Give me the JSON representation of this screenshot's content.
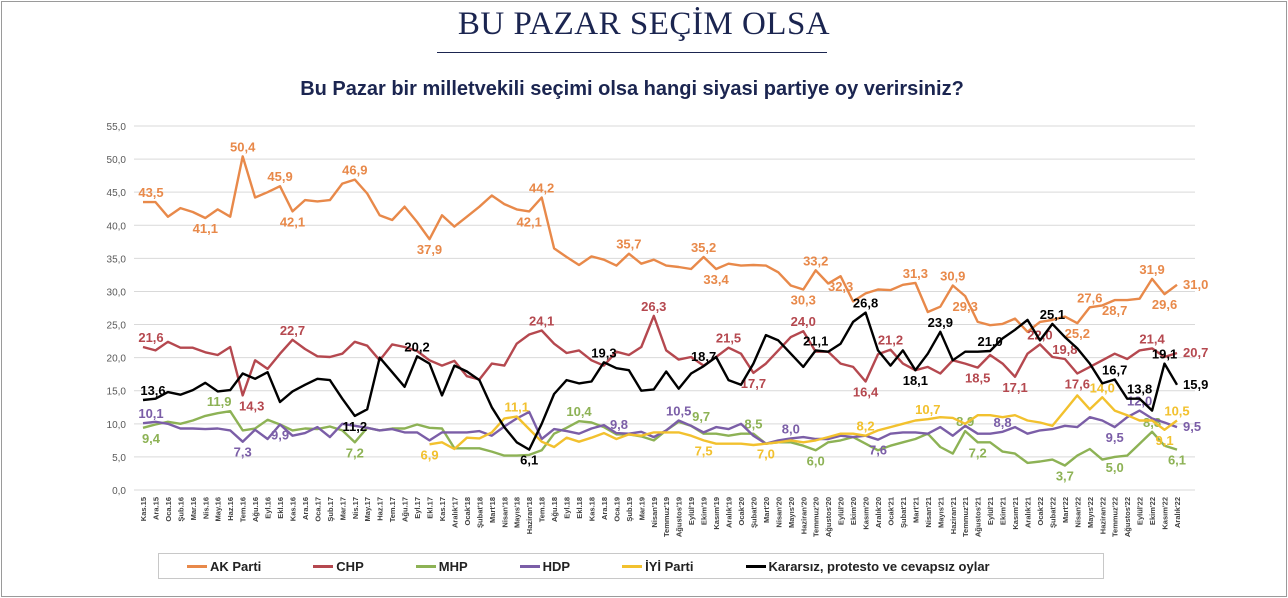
{
  "header": {
    "title": "BU PAZAR SEÇİM OLSA"
  },
  "chart_data": {
    "type": "line",
    "title": "Bu Pazar bir milletvekili seçimi olsa hangi siyasi partiye oy verirsiniz?",
    "xlabel": "",
    "ylabel": "",
    "ylim": [
      0,
      55
    ],
    "yticks": [
      "0,0",
      "5,0",
      "10,0",
      "15,0",
      "20,0",
      "25,0",
      "30,0",
      "35,0",
      "40,0",
      "45,0",
      "50,0",
      "55,0"
    ],
    "grid": true,
    "legend_position": "bottom",
    "categories": [
      "Kas.15",
      "Ara.15",
      "Oca.16",
      "Şub.16",
      "Mar.16",
      "Nis.16",
      "May.16",
      "Haz.16",
      "Tem.16",
      "Ağu.16",
      "Eyl.16",
      "Ekl.16",
      "Kas.16",
      "Ara.16",
      "Oca.17",
      "Şub.17",
      "Mar.17",
      "Nis.17",
      "May.17",
      "Haz.17",
      "Tem.17",
      "Ağu.17",
      "Eyl.17",
      "Ekl.17",
      "Kas.17",
      "Aralık'17",
      "Ocak'18",
      "Şubat'18",
      "Mart'18",
      "Nisan'18",
      "Mayıs'18",
      "Haziran'18",
      "Tem.18",
      "Ağu.18",
      "Eyl.18",
      "Ekl.18",
      "Kas.18",
      "Ara.18",
      "Oca.19",
      "Şub.19",
      "Mar.19",
      "Nisan'19",
      "Temmuz'19",
      "Ağustos'19",
      "Eylül'19",
      "Ekim'19",
      "Kasım'19",
      "Aralık'19",
      "Ocak'20",
      "Şubat'20",
      "Mart'20",
      "Nisan'20",
      "Mayıs'20",
      "Haziran'20",
      "Temmuz'20",
      "Ağustos'20",
      "Eylül'20",
      "Ekim'20",
      "Kasım'20",
      "Aralık'20",
      "Ocak'21",
      "Şubat'21",
      "Mart'21",
      "Nisan'21",
      "Mayıs'21",
      "Haziran'21",
      "Temmuz'21",
      "Ağustos'21",
      "Eylül'21",
      "Ekim'21",
      "Kasım'21",
      "Aralık'21",
      "Ocak'22",
      "Şubat'22",
      "Mart'22",
      "Nisan'22",
      "Mayıs'22",
      "Haziran'22",
      "Temmuz'22",
      "Ağustos'22",
      "Eylül'22",
      "Ekim'22",
      "Kasım'22",
      "Aralık'22"
    ],
    "series": [
      {
        "name": "AK Parti",
        "color": "#E8894A",
        "values": [
          43.5,
          43.5,
          41.3,
          42.6,
          42.0,
          41.1,
          42.4,
          41.3,
          50.4,
          44.2,
          45.0,
          45.9,
          42.1,
          43.8,
          43.6,
          43.8,
          46.3,
          46.9,
          44.8,
          41.5,
          40.8,
          42.8,
          40.5,
          37.9,
          41.5,
          39.8,
          41.3,
          42.8,
          44.5,
          43.2,
          42.4,
          42.1,
          44.2,
          36.5,
          35.2,
          34.0,
          35.3,
          34.8,
          33.9,
          35.7,
          34.2,
          34.8,
          33.9,
          33.7,
          33.4,
          35.2,
          33.4,
          34.2,
          33.9,
          34.0,
          33.9,
          32.9,
          30.9,
          30.3,
          33.2,
          31.2,
          32.3,
          28.5,
          29.7,
          30.3,
          30.2,
          31.0,
          31.3,
          26.9,
          27.7,
          30.9,
          29.3,
          25.4,
          24.9,
          25.1,
          25.9,
          23.9,
          25.4,
          25.7,
          26.2,
          25.2,
          27.6,
          27.9,
          28.7,
          28.7,
          28.9,
          31.9,
          29.6,
          31.0
        ],
        "labels": [
          [
            0,
            "43,5"
          ],
          [
            5,
            "41,1"
          ],
          [
            8,
            "50,4"
          ],
          [
            11,
            "45,9"
          ],
          [
            12,
            "42,1"
          ],
          [
            17,
            "46,9"
          ],
          [
            23,
            "37,9"
          ],
          [
            31,
            "42,1"
          ],
          [
            32,
            "44,2"
          ],
          [
            39,
            "35,7"
          ],
          [
            45,
            "35,2"
          ],
          [
            46,
            "33,4"
          ],
          [
            53,
            "30,3"
          ],
          [
            54,
            "33,2"
          ],
          [
            56,
            "32,3"
          ],
          [
            62,
            "31,3"
          ],
          [
            65,
            "30,9"
          ],
          [
            66,
            "29,3"
          ],
          [
            75,
            "25,2"
          ],
          [
            76,
            "27,6"
          ],
          [
            78,
            "28,7"
          ],
          [
            81,
            "31,9"
          ],
          [
            82,
            "29,6"
          ],
          [
            83,
            "31,0"
          ]
        ]
      },
      {
        "name": "CHP",
        "color": "#B5484F",
        "values": [
          21.6,
          21.1,
          22.4,
          21.5,
          21.5,
          20.8,
          20.4,
          21.6,
          14.3,
          19.6,
          18.3,
          20.6,
          22.7,
          21.3,
          20.2,
          20.1,
          20.6,
          22.4,
          21.8,
          19.6,
          22.0,
          21.6,
          21.0,
          19.6,
          18.8,
          19.5,
          17.2,
          16.7,
          19.1,
          18.8,
          22.1,
          23.5,
          24.1,
          22.1,
          20.7,
          21.1,
          19.6,
          18.8,
          20.9,
          20.4,
          21.6,
          26.3,
          21.1,
          19.7,
          20.1,
          18.8,
          20.1,
          21.5,
          20.6,
          17.7,
          19.1,
          21.1,
          23.1,
          24.0,
          20.9,
          20.9,
          19.1,
          18.6,
          16.4,
          20.5,
          21.2,
          19.1,
          18.1,
          18.6,
          17.6,
          19.6,
          19.1,
          18.5,
          20.4,
          19.1,
          17.1,
          20.6,
          22.0,
          20.1,
          19.8,
          17.6,
          18.6,
          19.6,
          20.6,
          19.8,
          21.1,
          21.4,
          20.1,
          20.7
        ],
        "labels": [
          [
            0,
            "21,6"
          ],
          [
            8,
            "14,3"
          ],
          [
            12,
            "22,7"
          ],
          [
            32,
            "24,1"
          ],
          [
            41,
            "26,3"
          ],
          [
            47,
            "21,5"
          ],
          [
            49,
            "17,7"
          ],
          [
            53,
            "24,0"
          ],
          [
            58,
            "16,4"
          ],
          [
            60,
            "21,2"
          ],
          [
            67,
            "18,5"
          ],
          [
            70,
            "17,1"
          ],
          [
            72,
            "22,0"
          ],
          [
            74,
            "19,8"
          ],
          [
            75,
            "17,6"
          ],
          [
            81,
            "21,4"
          ],
          [
            83,
            "20,7"
          ]
        ]
      },
      {
        "name": "MHP",
        "color": "#8DB255",
        "values": [
          9.4,
          9.9,
          10.3,
          10.0,
          10.5,
          11.2,
          11.6,
          11.9,
          9.0,
          9.3,
          10.6,
          9.9,
          9.0,
          9.3,
          9.2,
          9.6,
          9.0,
          7.2,
          9.4,
          9.0,
          9.3,
          9.3,
          9.9,
          9.4,
          9.3,
          6.3,
          6.3,
          6.3,
          5.8,
          5.2,
          5.2,
          5.3,
          6.0,
          8.5,
          9.4,
          10.4,
          10.2,
          9.5,
          8.4,
          8.4,
          8.1,
          7.5,
          9.0,
          10.3,
          9.7,
          8.5,
          8.5,
          8.2,
          8.5,
          8.5,
          7.0,
          7.2,
          7.2,
          6.7,
          6.0,
          7.2,
          7.5,
          8.0,
          7.0,
          6.0,
          6.7,
          7.2,
          7.7,
          8.5,
          6.5,
          5.5,
          8.9,
          7.2,
          7.2,
          5.8,
          5.5,
          4.1,
          4.3,
          4.6,
          3.7,
          5.2,
          6.2,
          4.6,
          5.0,
          5.2,
          7.0,
          8.8,
          6.7,
          6.1
        ],
        "labels": [
          [
            0,
            "9,4"
          ],
          [
            7,
            "11,9"
          ],
          [
            17,
            "7,2"
          ],
          [
            35,
            "10,4"
          ],
          [
            44,
            "9,7"
          ],
          [
            49,
            "8,5"
          ],
          [
            54,
            "6,0"
          ],
          [
            66,
            "8,9"
          ],
          [
            67,
            "7,2"
          ],
          [
            74,
            "3,7"
          ],
          [
            78,
            "5,0"
          ],
          [
            81,
            "8,8"
          ],
          [
            83,
            "6,1"
          ]
        ]
      },
      {
        "name": "HDP",
        "color": "#7B5EA7",
        "values": [
          10.1,
          10.3,
          10.0,
          9.3,
          9.3,
          9.2,
          9.3,
          9.0,
          7.3,
          9.1,
          7.7,
          9.9,
          8.2,
          8.6,
          9.5,
          8.0,
          10.0,
          9.7,
          9.4,
          9.0,
          9.2,
          8.7,
          8.7,
          7.5,
          8.7,
          8.7,
          8.7,
          8.9,
          8.2,
          9.6,
          10.8,
          11.8,
          7.7,
          9.2,
          8.9,
          8.5,
          9.3,
          9.8,
          8.6,
          8.5,
          8.8,
          8.0,
          9.0,
          10.5,
          9.7,
          8.7,
          9.5,
          9.2,
          10.0,
          8.2,
          7.0,
          7.5,
          7.8,
          8.0,
          7.7,
          7.7,
          8.2,
          8.0,
          8.2,
          7.6,
          8.5,
          8.7,
          8.7,
          8.5,
          9.5,
          8.2,
          9.7,
          8.5,
          8.5,
          8.8,
          9.5,
          8.5,
          9.0,
          9.2,
          9.7,
          9.5,
          11.0,
          10.5,
          9.5,
          11.0,
          12.0,
          10.8,
          10.2,
          9.5
        ],
        "labels": [
          [
            0,
            "10,1"
          ],
          [
            8,
            "7,3"
          ],
          [
            11,
            "9,9"
          ],
          [
            37,
            "9,8"
          ],
          [
            43,
            "10,5"
          ],
          [
            52,
            "8,0"
          ],
          [
            59,
            "7,6"
          ],
          [
            69,
            "8,8"
          ],
          [
            78,
            "9,5"
          ],
          [
            80,
            "12,0"
          ],
          [
            83,
            "9,5"
          ]
        ]
      },
      {
        "name": "İYİ Parti",
        "color": "#F2C12E",
        "values": [
          null,
          null,
          null,
          null,
          null,
          null,
          null,
          null,
          null,
          null,
          null,
          null,
          null,
          null,
          null,
          null,
          null,
          null,
          null,
          null,
          null,
          null,
          null,
          6.9,
          7.2,
          6.2,
          7.9,
          7.8,
          8.7,
          10.8,
          11.1,
          9.2,
          7.3,
          6.5,
          7.9,
          7.3,
          7.9,
          8.6,
          7.7,
          8.4,
          8.2,
          8.7,
          8.7,
          8.7,
          8.2,
          7.5,
          7.0,
          7.0,
          7.0,
          6.8,
          7.0,
          7.2,
          7.5,
          7.2,
          7.5,
          8.0,
          8.5,
          8.5,
          8.2,
          9.0,
          9.5,
          10.0,
          10.5,
          10.7,
          11.0,
          10.9,
          10.0,
          11.3,
          11.3,
          11.0,
          11.3,
          10.5,
          10.2,
          9.7,
          12.0,
          14.3,
          12.2,
          14.0,
          12.0,
          11.3,
          10.5,
          10.5,
          9.1,
          10.5
        ],
        "labels": [
          [
            23,
            "6,9"
          ],
          [
            30,
            "11,1"
          ],
          [
            45,
            "7,5"
          ],
          [
            50,
            "7,0"
          ],
          [
            58,
            "8,2"
          ],
          [
            63,
            "10,7"
          ],
          [
            77,
            "14,0"
          ],
          [
            82,
            "9,1"
          ],
          [
            83,
            "10,5"
          ]
        ]
      },
      {
        "name": "Kararsız, protesto ve cevapsız oylar",
        "color": "#000000",
        "values": [
          13.6,
          13.8,
          14.8,
          14.4,
          15.1,
          16.2,
          14.9,
          15.1,
          17.6,
          16.8,
          17.8,
          13.3,
          14.9,
          15.9,
          16.8,
          16.6,
          13.8,
          11.2,
          12.2,
          20.0,
          17.8,
          15.6,
          20.2,
          19.1,
          14.3,
          18.8,
          17.9,
          16.6,
          12.5,
          9.5,
          7.2,
          6.1,
          10.0,
          14.5,
          16.6,
          16.1,
          16.4,
          19.3,
          18.4,
          18.1,
          15.0,
          15.2,
          17.9,
          15.3,
          17.6,
          18.7,
          20.1,
          16.6,
          15.9,
          19.1,
          23.4,
          22.6,
          20.6,
          18.6,
          21.1,
          20.9,
          22.1,
          25.4,
          26.8,
          21.1,
          18.8,
          21.1,
          18.1,
          20.6,
          23.9,
          19.6,
          20.9,
          20.9,
          21.0,
          22.9,
          24.2,
          25.7,
          22.6,
          25.1,
          23.1,
          21.4,
          19.1,
          16.1,
          16.7,
          13.8,
          13.8,
          12.0,
          19.1,
          15.9
        ],
        "labels": [
          [
            0,
            "13,6"
          ],
          [
            17,
            "11,2"
          ],
          [
            22,
            "20,2"
          ],
          [
            31,
            "6,1"
          ],
          [
            37,
            "19,3"
          ],
          [
            45,
            "18,7"
          ],
          [
            54,
            "21,1"
          ],
          [
            58,
            "26,8"
          ],
          [
            62,
            "18,1"
          ],
          [
            64,
            "23,9"
          ],
          [
            68,
            "21,0"
          ],
          [
            73,
            "25,1"
          ],
          [
            78,
            "16,7"
          ],
          [
            80,
            "13,8"
          ],
          [
            82,
            "19,1"
          ],
          [
            83,
            "15,9"
          ]
        ]
      }
    ]
  }
}
